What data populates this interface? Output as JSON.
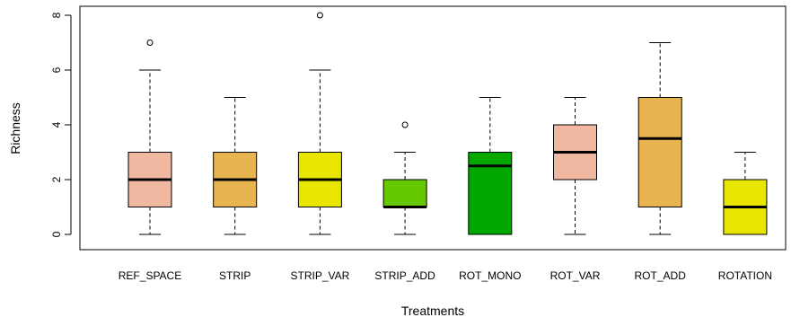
{
  "chart_data": {
    "type": "boxplot",
    "xlabel": "Treatments",
    "ylabel": "Richness",
    "ylim": [
      0,
      8
    ],
    "yticks": [
      0,
      2,
      4,
      6,
      8
    ],
    "categories": [
      "REF_SPACE",
      "STRIP",
      "STRIP_VAR",
      "STRIP_ADD",
      "ROT_MONO",
      "ROT_VAR",
      "ROT_ADD",
      "ROTATION"
    ],
    "boxes": [
      {
        "category": "REF_SPACE",
        "whisker_low": 0,
        "q1": 1,
        "median": 2,
        "q3": 3,
        "whisker_high": 6,
        "outliers": [
          7
        ],
        "color": "#f0b8a0"
      },
      {
        "category": "STRIP",
        "whisker_low": 0,
        "q1": 1,
        "median": 2,
        "q3": 3,
        "whisker_high": 5,
        "outliers": [],
        "color": "#e8b450"
      },
      {
        "category": "STRIP_VAR",
        "whisker_low": 0,
        "q1": 1,
        "median": 2,
        "q3": 3,
        "whisker_high": 6,
        "outliers": [
          8
        ],
        "color": "#e8e600"
      },
      {
        "category": "STRIP_ADD",
        "whisker_low": 0,
        "q1": 1,
        "median": 1,
        "q3": 2,
        "whisker_high": 3,
        "outliers": [
          4
        ],
        "color": "#66c800"
      },
      {
        "category": "ROT_MONO",
        "whisker_low": 0,
        "q1": 0,
        "median": 2.5,
        "q3": 3,
        "whisker_high": 5,
        "outliers": [],
        "color": "#00a800"
      },
      {
        "category": "ROT_VAR",
        "whisker_low": 0,
        "q1": 2,
        "median": 3,
        "q3": 4,
        "whisker_high": 5,
        "outliers": [],
        "color": "#f0b8a0"
      },
      {
        "category": "ROT_ADD",
        "whisker_low": 0,
        "q1": 1,
        "median": 3.5,
        "q3": 5,
        "whisker_high": 7,
        "outliers": [],
        "color": "#e8b450"
      },
      {
        "category": "ROTATION",
        "whisker_low": 0,
        "q1": 0,
        "median": 1,
        "q3": 2,
        "whisker_high": 3,
        "outliers": [],
        "color": "#e8e600"
      }
    ]
  }
}
